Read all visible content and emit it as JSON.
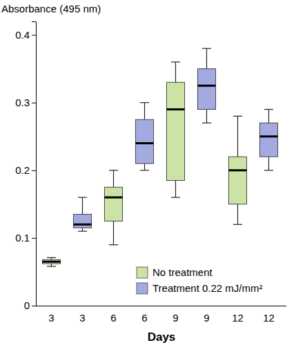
{
  "chart_data": {
    "type": "box",
    "y_label": "Absorbance (495 nm)",
    "x_label": "Days",
    "categories": [
      "3",
      "3",
      "6",
      "6",
      "9",
      "9",
      "12",
      "12"
    ],
    "ylim": [
      0,
      0.42
    ],
    "yticks": [
      0,
      0.1,
      0.2,
      0.3,
      0.4
    ],
    "legend": "bottom-right",
    "series": [
      {
        "name": "No treatment",
        "color": "#cce3a6",
        "boxes": [
          {
            "low": 0.058,
            "q1": 0.062,
            "median": 0.065,
            "q3": 0.068,
            "high": 0.071
          },
          null,
          {
            "low": 0.09,
            "q1": 0.125,
            "median": 0.16,
            "q3": 0.175,
            "high": 0.2
          },
          null,
          {
            "low": 0.16,
            "q1": 0.185,
            "median": 0.29,
            "q3": 0.33,
            "high": 0.36
          },
          null,
          {
            "low": 0.12,
            "q1": 0.15,
            "median": 0.2,
            "q3": 0.22,
            "high": 0.28
          },
          null
        ]
      },
      {
        "name": "Treatment 0.22 mJ/mm²",
        "color": "#a3aae0",
        "boxes": [
          null,
          {
            "low": 0.11,
            "q1": 0.115,
            "median": 0.12,
            "q3": 0.135,
            "high": 0.16
          },
          null,
          {
            "low": 0.2,
            "q1": 0.21,
            "median": 0.24,
            "q3": 0.275,
            "high": 0.3
          },
          null,
          {
            "low": 0.27,
            "q1": 0.29,
            "median": 0.325,
            "q3": 0.35,
            "high": 0.38
          },
          null,
          {
            "low": 0.2,
            "q1": 0.22,
            "median": 0.25,
            "q3": 0.27,
            "high": 0.29
          }
        ]
      }
    ]
  }
}
